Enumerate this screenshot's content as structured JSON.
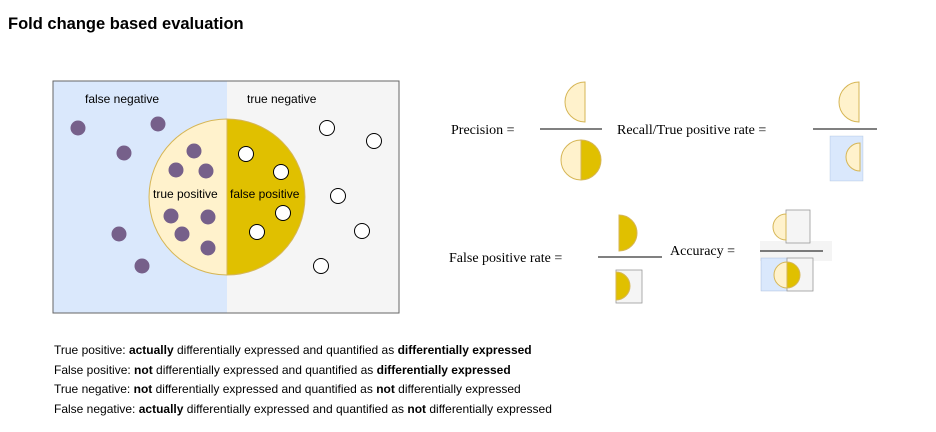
{
  "title": "Fold change based evaluation",
  "diagram": {
    "regions": {
      "false_negative": "false negative",
      "true_negative": "true negative",
      "true_positive": "true positive",
      "false_positive": "false positive"
    },
    "colors": {
      "false_negative_bg": "#dae8fc",
      "true_negative_bg": "#f5f5f5",
      "true_positive_fill": "#fff2cc",
      "false_positive_fill": "#e0c000",
      "circle_border": "#d6b656",
      "purple_dot": "#76608a",
      "white_dot": "#ffffff",
      "frame": "#666666"
    },
    "dot_kinds": {
      "positive": "purple-filled-dot",
      "negative": "white-hollow-dot"
    }
  },
  "formulas": {
    "precision": "Precision =",
    "recall": "Recall/True positive rate =",
    "false_positive_rate": "False positive rate =",
    "accuracy": "Accuracy ="
  },
  "definitions": [
    {
      "term": "True positive:",
      "parts": [
        {
          "text": " ",
          "bold": false
        },
        {
          "text": "actually",
          "bold": true
        },
        {
          "text": " differentially expressed and quantified as ",
          "bold": false
        },
        {
          "text": "differentially expressed",
          "bold": true
        }
      ]
    },
    {
      "term": "False positive:",
      "parts": [
        {
          "text": " ",
          "bold": false
        },
        {
          "text": "not",
          "bold": true
        },
        {
          "text": " differentially expressed and quantified as ",
          "bold": false
        },
        {
          "text": "differentially expressed",
          "bold": true
        }
      ]
    },
    {
      "term": "True negative:",
      "parts": [
        {
          "text": " ",
          "bold": false
        },
        {
          "text": "not",
          "bold": true
        },
        {
          "text": " differentially expressed and quantified as ",
          "bold": false
        },
        {
          "text": "not",
          "bold": true
        },
        {
          "text": " differentially expressed",
          "bold": false
        }
      ]
    },
    {
      "term": "False negative:",
      "parts": [
        {
          "text": " ",
          "bold": false
        },
        {
          "text": "actually",
          "bold": true
        },
        {
          "text": " differentially expressed and quantified as ",
          "bold": false
        },
        {
          "text": "not",
          "bold": true
        },
        {
          "text": " differentially expressed",
          "bold": false
        }
      ]
    }
  ]
}
